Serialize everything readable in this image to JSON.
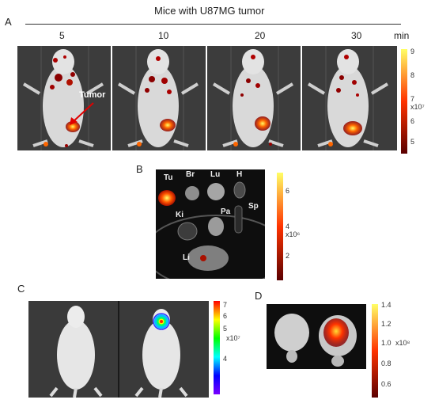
{
  "title": "Mice with U87MG tumor",
  "panel_labels": {
    "a": "A",
    "b": "B",
    "c": "C",
    "d": "D"
  },
  "timepoints": [
    "5",
    "10",
    "20",
    "30"
  ],
  "time_unit": "min",
  "tumor_label": "Tumor",
  "scale_a": {
    "ticks": [
      "9",
      "8",
      "7",
      "6",
      "5"
    ],
    "multiplier": "x10⁷",
    "colors": [
      "#ffff66",
      "#ff3300",
      "#5a0000"
    ]
  },
  "organs": {
    "tumor": "Tu",
    "brain": "Br",
    "lung": "Lu",
    "heart": "H",
    "kidney": "Ki",
    "spleen": "Sp",
    "pancreas": "Pa",
    "liver": "Li"
  },
  "scale_b": {
    "ticks": [
      "6",
      "4",
      "2"
    ],
    "multiplier": "x10⁶",
    "colors": [
      "#ffff66",
      "#ff3300",
      "#5a0000"
    ]
  },
  "scale_c": {
    "ticks": [
      "7",
      "6",
      "5",
      "4"
    ],
    "multiplier": "x10⁷",
    "colors": [
      "#ff0000",
      "#ffff00",
      "#00ff00",
      "#00ffff",
      "#0000ff",
      "#7a00ff"
    ]
  },
  "scale_d": {
    "ticks": [
      "1.4",
      "1.2",
      "1.0",
      "0.8",
      "0.6"
    ],
    "multiplier": "x10⁸",
    "colors": [
      "#ffff66",
      "#ff3300",
      "#5a0000"
    ]
  }
}
